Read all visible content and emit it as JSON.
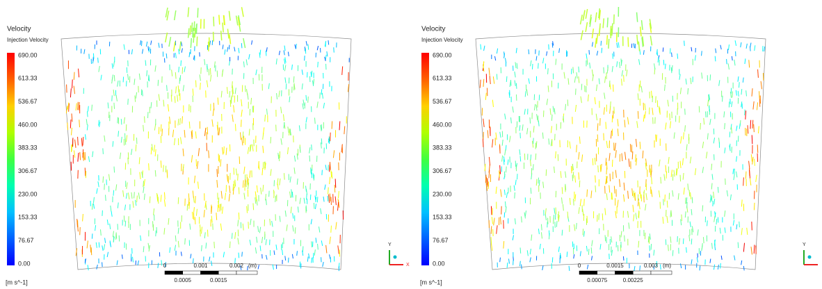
{
  "panels": [
    {
      "legend": {
        "title": "Velocity",
        "subtitle": "Injection Velocity",
        "ticks": [
          "690.00",
          "613.33",
          "536.67",
          "460.00",
          "383.33",
          "306.67",
          "230.00",
          "153.33",
          "76.67",
          "0.00"
        ],
        "unit": "[m s^-1]"
      },
      "scale": {
        "top": [
          "0",
          "0.001",
          "0.002"
        ],
        "unit": "(m)",
        "bottom": [
          "0.0005",
          "0.0015"
        ]
      },
      "axes": {
        "y": "Y",
        "x": "X"
      }
    },
    {
      "legend": {
        "title": "Velocity",
        "subtitle": "Injection Velocity",
        "ticks": [
          "690.00",
          "613.33",
          "536.67",
          "460.00",
          "383.33",
          "306.67",
          "230.00",
          "153.33",
          "76.67",
          "0.00"
        ],
        "unit": "[m s^-1]"
      },
      "scale": {
        "top": [
          "0",
          "0.0015",
          "0.003"
        ],
        "unit": "(m)",
        "bottom": [
          "0.00075",
          "0.00225"
        ]
      },
      "axes": {
        "y": "Y"
      }
    }
  ]
}
